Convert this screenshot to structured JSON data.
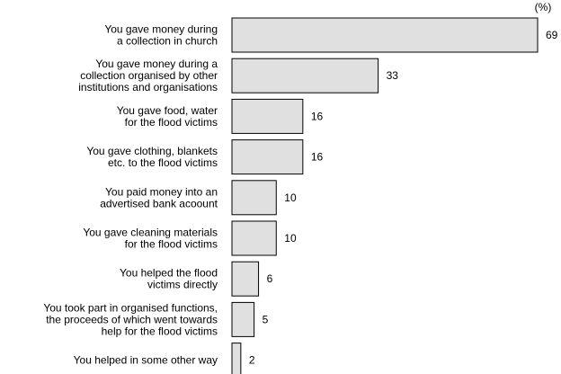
{
  "chart_data": {
    "type": "bar",
    "orientation": "horizontal",
    "unit_label": "(%)",
    "categories": [
      "You gave money during\na collection in church",
      "You gave money during a\ncollection organised by other\ninstitutions and organisations",
      "You gave food, water\nfor the flood victims",
      "You gave clothing, blankets\netc. to the flood victims",
      "You paid money into an\nadvertised bank acoount",
      "You gave cleaning materials\nfor the flood victims",
      "You helped the flood\nvictims directly",
      "You took part in organised functions,\nthe proceeds of which went towards\nhelp for the flood victims",
      "You helped in some other way"
    ],
    "values": [
      69,
      33,
      16,
      16,
      10,
      10,
      6,
      5,
      2
    ],
    "color": "#e0e0e0"
  }
}
